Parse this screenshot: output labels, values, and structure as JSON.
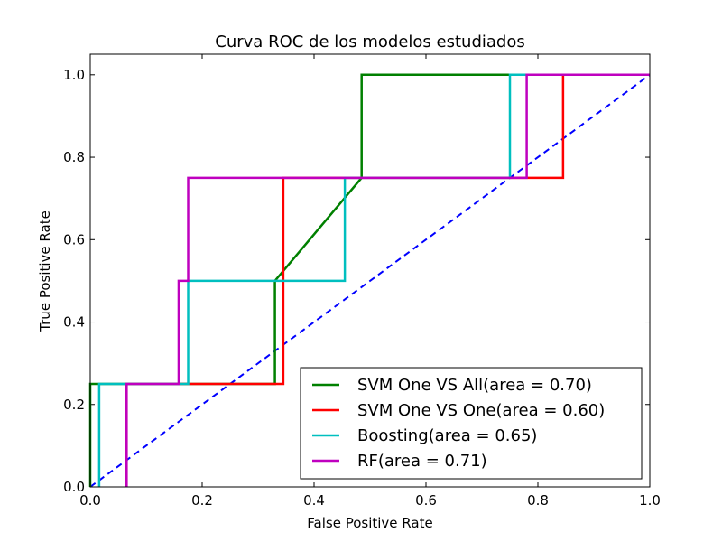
{
  "chart_data": {
    "type": "line",
    "title": "Curva ROC de los modelos estudiados",
    "xlabel": "False Positive Rate",
    "ylabel": "True Positive Rate",
    "xlim": [
      0.0,
      1.0
    ],
    "ylim": [
      0.0,
      1.05
    ],
    "xticks": [
      0.0,
      0.2,
      0.4,
      0.6,
      0.8,
      1.0
    ],
    "xtick_labels": [
      "0.0",
      "0.2",
      "0.4",
      "0.6",
      "0.8",
      "1.0"
    ],
    "yticks": [
      0.0,
      0.2,
      0.4,
      0.6,
      0.8,
      1.0
    ],
    "ytick_labels": [
      "0.0",
      "0.2",
      "0.4",
      "0.6",
      "0.8",
      "1.0"
    ],
    "grid": false,
    "legend_position": "lower-right",
    "series": [
      {
        "name": "SVM One VS All(area = 0.70)",
        "color": "#008000",
        "style": "solid",
        "x": [
          0.0,
          0.0,
          0.065,
          0.065,
          0.33,
          0.33,
          0.485,
          0.485,
          1.0
        ],
        "y": [
          0.0,
          0.25,
          0.25,
          0.25,
          0.25,
          0.5,
          0.75,
          1.0,
          1.0
        ]
      },
      {
        "name": "SVM One VS One(area = 0.60)",
        "color": "#ff0000",
        "style": "solid",
        "x": [
          0.065,
          0.065,
          0.345,
          0.345,
          0.845,
          0.845,
          1.0
        ],
        "y": [
          0.0,
          0.25,
          0.25,
          0.75,
          0.75,
          1.0,
          1.0
        ]
      },
      {
        "name": "Boosting(area = 0.65)",
        "color": "#00bfbf",
        "style": "solid",
        "x": [
          0.016,
          0.016,
          0.175,
          0.175,
          0.455,
          0.455,
          0.75,
          0.75,
          1.0
        ],
        "y": [
          0.0,
          0.25,
          0.25,
          0.5,
          0.5,
          0.75,
          0.75,
          1.0,
          1.0
        ]
      },
      {
        "name": "RF(area = 0.71)",
        "color": "#bf00bf",
        "style": "solid",
        "x": [
          0.065,
          0.065,
          0.158,
          0.158,
          0.175,
          0.175,
          0.78,
          0.78,
          1.0
        ],
        "y": [
          0.0,
          0.25,
          0.25,
          0.5,
          0.5,
          0.75,
          0.75,
          1.0,
          1.0
        ]
      }
    ],
    "reference_line": {
      "color": "#0000ff",
      "style": "dashed",
      "x": [
        0.0,
        1.0
      ],
      "y": [
        0.0,
        1.0
      ]
    }
  }
}
